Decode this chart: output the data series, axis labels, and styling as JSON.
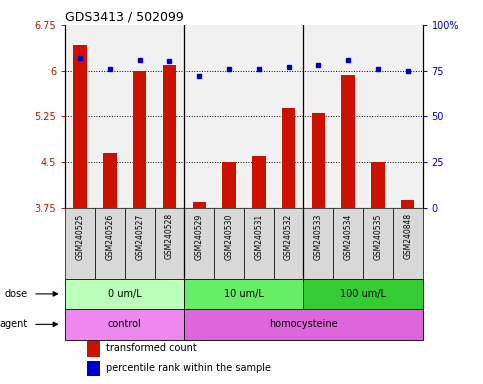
{
  "title": "GDS3413 / 502099",
  "samples": [
    "GSM240525",
    "GSM240526",
    "GSM240527",
    "GSM240528",
    "GSM240529",
    "GSM240530",
    "GSM240531",
    "GSM240532",
    "GSM240533",
    "GSM240534",
    "GSM240535",
    "GSM240848"
  ],
  "red_values": [
    6.42,
    4.65,
    6.0,
    6.1,
    3.85,
    4.5,
    4.6,
    5.38,
    5.3,
    5.92,
    4.5,
    3.88
  ],
  "blue_values": [
    82,
    76,
    81,
    80,
    72,
    76,
    76,
    77,
    78,
    81,
    76,
    75
  ],
  "ylim_left": [
    3.75,
    6.75
  ],
  "ylim_right": [
    0,
    100
  ],
  "yticks_left": [
    3.75,
    4.5,
    5.25,
    6.0,
    6.75
  ],
  "yticks_right": [
    0,
    25,
    50,
    75,
    100
  ],
  "ytick_labels_left": [
    "3.75",
    "4.5",
    "5.25",
    "6",
    "6.75"
  ],
  "ytick_labels_right": [
    "0",
    "25",
    "50",
    "75",
    "100%"
  ],
  "hlines": [
    4.5,
    5.25,
    6.0
  ],
  "dose_groups": [
    {
      "label": "0 um/L",
      "start": 0,
      "end": 4,
      "color": "#bbffbb"
    },
    {
      "label": "10 um/L",
      "start": 4,
      "end": 8,
      "color": "#66ee66"
    },
    {
      "label": "100 um/L",
      "start": 8,
      "end": 12,
      "color": "#33cc33"
    }
  ],
  "agent_groups": [
    {
      "label": "control",
      "start": 0,
      "end": 4,
      "color": "#ee88ee"
    },
    {
      "label": "homocysteine",
      "start": 4,
      "end": 12,
      "color": "#dd66dd"
    }
  ],
  "bar_color": "#cc1100",
  "dot_color": "#0000cc",
  "axis_label_color_left": "#cc1100",
  "axis_label_color_right": "#0000cc",
  "legend_items": [
    {
      "color": "#cc1100",
      "label": "transformed count"
    },
    {
      "color": "#0000cc",
      "label": "percentile rank within the sample"
    }
  ],
  "dose_label": "dose",
  "agent_label": "agent",
  "bar_width": 0.45,
  "group_boundaries": [
    3.5,
    7.5
  ],
  "n_samples": 12
}
